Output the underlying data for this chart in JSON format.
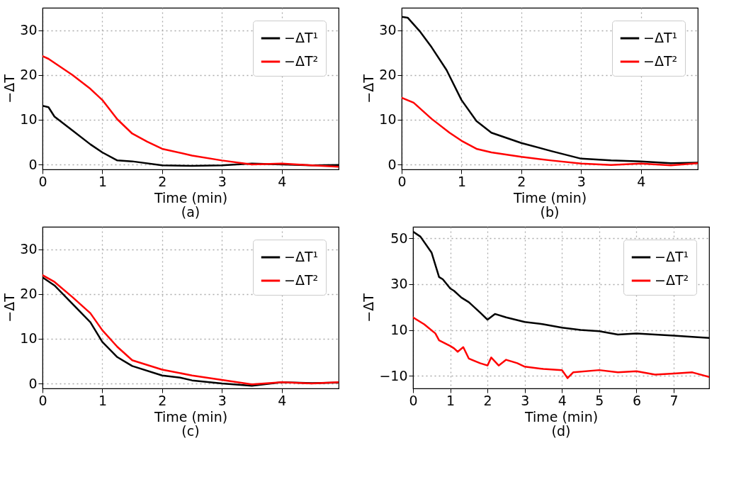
{
  "chart_data": [
    {
      "type": "line",
      "title": "(a)",
      "xlabel": "Time (min)",
      "ylabel": "−ΔT",
      "xlim": [
        0,
        4.95
      ],
      "ylim": [
        -1.1,
        35
      ],
      "xticks": [
        0,
        1,
        2,
        3,
        4
      ],
      "yticks": [
        0,
        10,
        20,
        30
      ],
      "grid": true,
      "legend": "top right",
      "series": [
        {
          "name": "−ΔT¹",
          "color": "#000000",
          "x": [
            0,
            0.1,
            0.2,
            0.5,
            0.8,
            1,
            1.25,
            1.5,
            2,
            2.5,
            3,
            3.5,
            4,
            4.5,
            4.95
          ],
          "values": [
            13.1,
            12.8,
            10.7,
            7.6,
            4.5,
            2.7,
            0.9,
            0.7,
            -0.2,
            -0.3,
            -0.2,
            0.2,
            0,
            -0.2,
            -0.1
          ]
        },
        {
          "name": "−ΔT²",
          "color": "#ff0000",
          "x": [
            0,
            0.1,
            0.5,
            0.8,
            1,
            1.25,
            1.5,
            1.75,
            2,
            2.5,
            3,
            3.5,
            4,
            4.5,
            4.95
          ],
          "values": [
            24.2,
            23.6,
            20,
            16.9,
            14.4,
            10.1,
            6.9,
            5.1,
            3.5,
            2,
            0.9,
            0,
            0.2,
            -0.2,
            -0.5
          ]
        }
      ]
    },
    {
      "type": "line",
      "title": "(b)",
      "xlabel": "Time (min)",
      "ylabel": "−ΔT",
      "xlim": [
        0,
        4.95
      ],
      "ylim": [
        -1.1,
        35
      ],
      "xticks": [
        0,
        1,
        2,
        3,
        4
      ],
      "yticks": [
        0,
        10,
        20,
        30
      ],
      "grid": true,
      "legend": "top right",
      "series": [
        {
          "name": "−ΔT¹",
          "color": "#000000",
          "x": [
            0,
            0.1,
            0.3,
            0.5,
            0.75,
            1,
            1.25,
            1.5,
            2,
            2.5,
            3,
            3.5,
            4,
            4.5,
            4.95
          ],
          "values": [
            33,
            32.8,
            29.8,
            26.2,
            21.1,
            14.4,
            9.7,
            7.1,
            4.8,
            3,
            1.3,
            0.9,
            0.7,
            0.3,
            0.4
          ]
        },
        {
          "name": "−ΔT²",
          "color": "#ff0000",
          "x": [
            0,
            0.2,
            0.5,
            0.8,
            1,
            1.25,
            1.5,
            2,
            2.5,
            3,
            3.5,
            4,
            4.5,
            4.95
          ],
          "values": [
            14.9,
            13.8,
            10.2,
            7.1,
            5.3,
            3.5,
            2.7,
            1.7,
            0.9,
            0.2,
            -0.1,
            0.2,
            -0.2,
            0.3
          ]
        }
      ]
    },
    {
      "type": "line",
      "title": "(c)",
      "xlabel": "Time (min)",
      "ylabel": "−ΔT",
      "xlim": [
        0,
        4.95
      ],
      "ylim": [
        -1.1,
        35
      ],
      "xticks": [
        0,
        1,
        2,
        3,
        4
      ],
      "yticks": [
        0,
        10,
        20,
        30
      ],
      "grid": true,
      "legend": "top right",
      "series": [
        {
          "name": "−ΔT¹",
          "color": "#000000",
          "x": [
            0,
            0.2,
            0.5,
            0.8,
            1,
            1.25,
            1.5,
            2,
            2.3,
            2.5,
            3,
            3.5,
            4,
            4.5,
            4.95
          ],
          "values": [
            23.7,
            21.9,
            17.8,
            13.7,
            9.3,
            5.9,
            3.9,
            1.8,
            1.3,
            0.7,
            0,
            -0.5,
            0.3,
            0.1,
            0.2
          ]
        },
        {
          "name": "−ΔT²",
          "color": "#ff0000",
          "x": [
            0,
            0.2,
            0.5,
            0.8,
            1,
            1.25,
            1.5,
            2,
            2.5,
            3,
            3.5,
            4,
            4.5,
            4.95
          ],
          "values": [
            24.2,
            22.7,
            19.3,
            15.7,
            11.9,
            8.2,
            5.2,
            3.1,
            1.8,
            0.8,
            -0.2,
            0.3,
            0,
            0.3
          ]
        }
      ]
    },
    {
      "type": "line",
      "title": "(d)",
      "xlabel": "Time (min)",
      "ylabel": "−ΔT",
      "xlim": [
        0,
        7.95
      ],
      "ylim": [
        -15.5,
        55
      ],
      "xticks": [
        0,
        1,
        2,
        3,
        4,
        5,
        6,
        7
      ],
      "yticks": [
        -10,
        10,
        30,
        50
      ],
      "grid": true,
      "legend": "top right",
      "series": [
        {
          "name": "−ΔT¹",
          "color": "#000000",
          "x": [
            0,
            0.2,
            0.5,
            0.7,
            0.8,
            1,
            1.1,
            1.3,
            1.5,
            1.8,
            2,
            2.2,
            2.5,
            3,
            3.5,
            4,
            4.5,
            5,
            5.5,
            6,
            6.5,
            7,
            7.5,
            7.95
          ],
          "values": [
            52.9,
            50.7,
            43.7,
            33.1,
            32.1,
            28.1,
            27.1,
            24.1,
            22.1,
            17.6,
            14.5,
            17,
            15.5,
            13.5,
            12.5,
            11,
            10,
            9.5,
            8,
            8.5,
            8,
            7.5,
            7,
            6.5
          ]
        },
        {
          "name": "−ΔT²",
          "color": "#ff0000",
          "x": [
            0,
            0.3,
            0.6,
            0.7,
            1,
            1.1,
            1.2,
            1.35,
            1.5,
            1.8,
            2,
            2.1,
            2.3,
            2.5,
            2.8,
            3,
            3.5,
            4,
            4.15,
            4.3,
            5,
            5.5,
            6,
            6.5,
            7,
            7.5,
            7.95
          ],
          "values": [
            15.5,
            12.5,
            8.5,
            5.5,
            3,
            2,
            0.5,
            2.5,
            -2.5,
            -4.5,
            -5.5,
            -2,
            -5.5,
            -3,
            -4.5,
            -6,
            -7,
            -7.5,
            -11,
            -8.5,
            -7.5,
            -8.5,
            -8,
            -9.5,
            -9,
            -8.5,
            -10.5
          ]
        }
      ]
    }
  ]
}
